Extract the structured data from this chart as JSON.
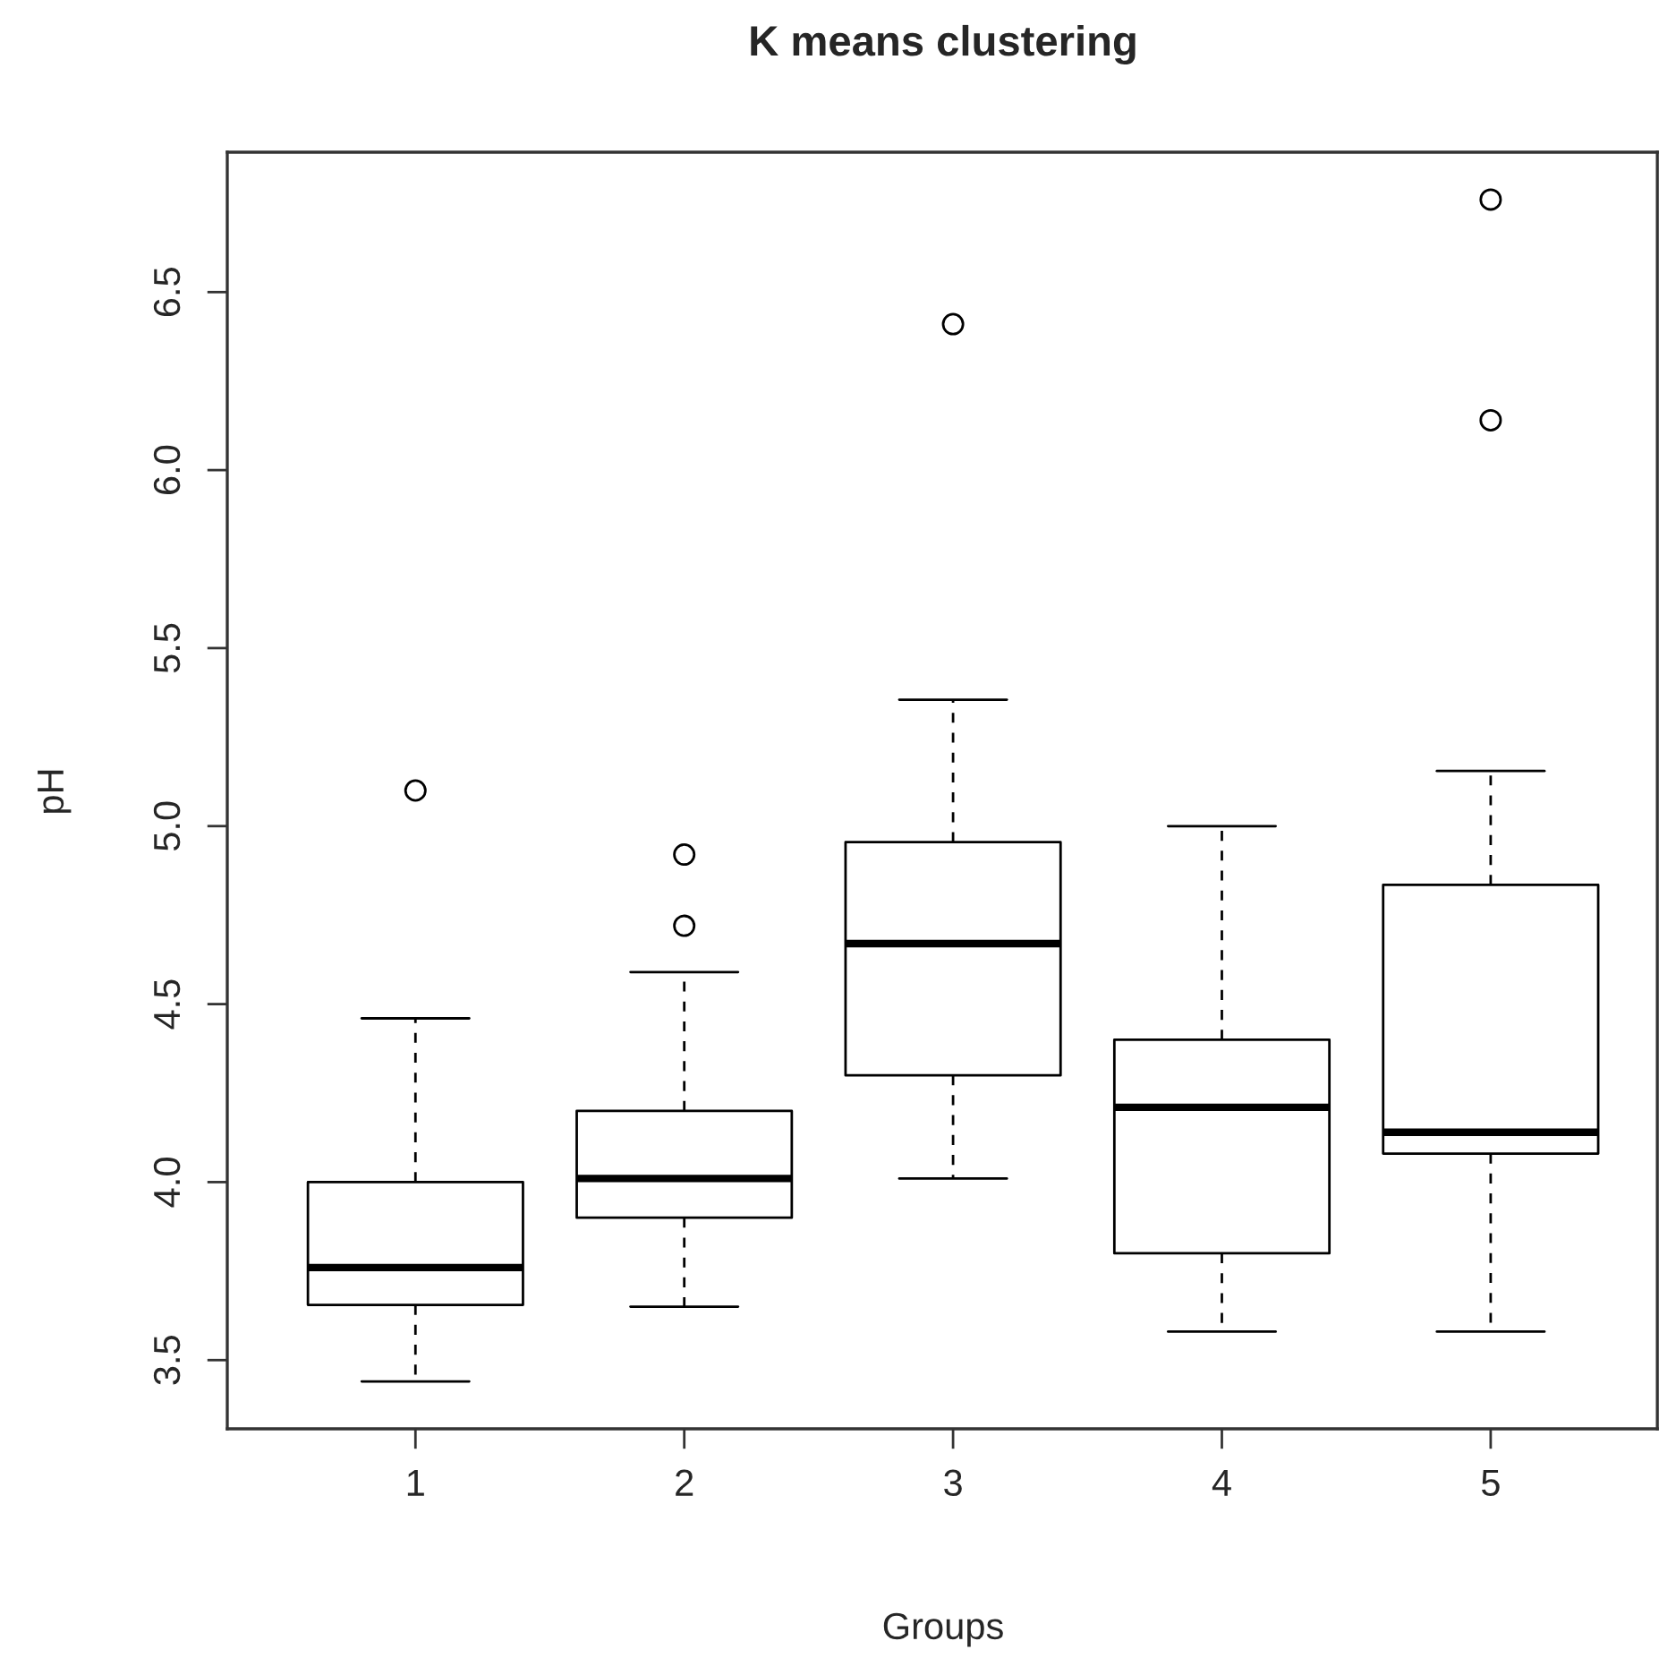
{
  "chart_data": {
    "type": "box",
    "title": "K means clustering",
    "xlabel": "Groups",
    "ylabel": "pH",
    "categories": [
      "1",
      "2",
      "3",
      "4",
      "5"
    ],
    "boxes": [
      {
        "low": 3.44,
        "q1": 3.655,
        "median": 3.76,
        "q3": 4.0,
        "high": 4.46,
        "outliers": [
          5.1
        ]
      },
      {
        "low": 3.65,
        "q1": 3.9,
        "median": 4.01,
        "q3": 4.2,
        "high": 4.59,
        "outliers": [
          4.72,
          4.92
        ]
      },
      {
        "low": 4.01,
        "q1": 4.3,
        "median": 4.67,
        "q3": 4.955,
        "high": 5.355,
        "outliers": [
          6.41
        ]
      },
      {
        "low": 3.58,
        "q1": 3.8,
        "median": 4.21,
        "q3": 4.4,
        "high": 5.0
      },
      {
        "low": 3.58,
        "q1": 4.08,
        "median": 4.14,
        "q3": 4.835,
        "high": 5.155,
        "outliers": [
          6.14,
          6.76
        ]
      }
    ],
    "ylim": [
      3.307,
      6.893
    ],
    "yticks": [
      3.5,
      {
        "value": 4,
        "label": "4.0"
      },
      4.5,
      {
        "value": 5,
        "label": "5.0"
      },
      5.5,
      {
        "value": 6,
        "label": "6.0"
      },
      6.5
    ],
    "grid": false,
    "legend": false
  }
}
